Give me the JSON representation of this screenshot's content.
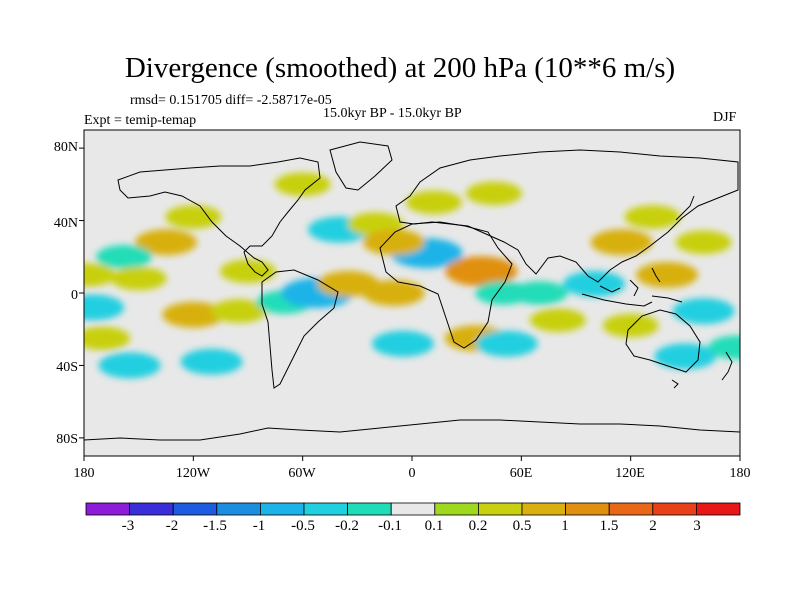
{
  "chart_data": {
    "type": "heatmap",
    "title": "Divergence (smoothed) at 200 hPa (10**6 m/s)",
    "stats_label": "rmsd= 0.151705 diff= -2.58717e-05",
    "expt_label": "Expt = temip-temap",
    "period_label": "15.0kyr BP - 15.0kyr BP",
    "season_label": "DJF",
    "lat_ticks": [
      "80N",
      "40N",
      "0",
      "40S",
      "80S"
    ],
    "lon_ticks": [
      "180",
      "120W",
      "60W",
      "0",
      "60E",
      "120E",
      "180"
    ],
    "xlim": [
      -180,
      180
    ],
    "ylim": [
      -90,
      90
    ],
    "colorbar": {
      "colors": [
        "#8c1cd8",
        "#3a2ed8",
        "#1e5be0",
        "#1c8ee0",
        "#1cb4e8",
        "#20cfe0",
        "#20ddb8",
        "#e8e8e8",
        "#a0d820",
        "#c8d010",
        "#d8b010",
        "#e09010",
        "#e86818",
        "#e84018",
        "#e81818"
      ],
      "labels": [
        "-3",
        "-2",
        "-1.5",
        "-1",
        "-0.5",
        "-0.2",
        "-0.1",
        "0.1",
        "0.2",
        "0.5",
        "1",
        "1.5",
        "2",
        "3"
      ]
    },
    "anomalies": [
      {
        "lon": -60,
        "lat": 60,
        "value": 0.2
      },
      {
        "lon": -120,
        "lat": 42,
        "value": 0.2
      },
      {
        "lon": -135,
        "lat": 28,
        "value": 0.5
      },
      {
        "lon": -158,
        "lat": 20,
        "value": -0.2
      },
      {
        "lon": -150,
        "lat": 8,
        "value": 0.2
      },
      {
        "lon": -178,
        "lat": 10,
        "value": 0.2
      },
      {
        "lon": -175,
        "lat": -8,
        "value": -0.5
      },
      {
        "lon": -120,
        "lat": -12,
        "value": 0.5
      },
      {
        "lon": -155,
        "lat": -40,
        "value": -0.5
      },
      {
        "lon": -110,
        "lat": -38,
        "value": -0.5
      },
      {
        "lon": -170,
        "lat": -25,
        "value": 0.2
      },
      {
        "lon": -90,
        "lat": 12,
        "value": 0.2
      },
      {
        "lon": -95,
        "lat": -10,
        "value": 0.2
      },
      {
        "lon": -70,
        "lat": -5,
        "value": -0.2
      },
      {
        "lon": -52,
        "lat": 0,
        "value": -1
      },
      {
        "lon": -35,
        "lat": 5,
        "value": 0.5
      },
      {
        "lon": -40,
        "lat": 35,
        "value": -0.5
      },
      {
        "lon": -20,
        "lat": 38,
        "value": 0.2
      },
      {
        "lon": 8,
        "lat": 22,
        "value": -1
      },
      {
        "lon": 45,
        "lat": 55,
        "value": 0.2
      },
      {
        "lon": 12,
        "lat": 50,
        "value": 0.2
      },
      {
        "lon": -10,
        "lat": 28,
        "value": 0.5
      },
      {
        "lon": -10,
        "lat": 0,
        "value": 0.5
      },
      {
        "lon": -5,
        "lat": -28,
        "value": -0.5
      },
      {
        "lon": 38,
        "lat": 12,
        "value": 1
      },
      {
        "lon": 50,
        "lat": 0,
        "value": -0.2
      },
      {
        "lon": 35,
        "lat": -25,
        "value": 0.5
      },
      {
        "lon": 52,
        "lat": -28,
        "value": -0.5
      },
      {
        "lon": 70,
        "lat": 0,
        "value": -0.2
      },
      {
        "lon": 80,
        "lat": -15,
        "value": 0.2
      },
      {
        "lon": 100,
        "lat": 5,
        "value": -0.5
      },
      {
        "lon": 120,
        "lat": -18,
        "value": 0.2
      },
      {
        "lon": 140,
        "lat": 10,
        "value": 0.5
      },
      {
        "lon": 132,
        "lat": 42,
        "value": 0.2
      },
      {
        "lon": 115,
        "lat": 28,
        "value": 0.5
      },
      {
        "lon": 160,
        "lat": 28,
        "value": 0.2
      },
      {
        "lon": 160,
        "lat": -10,
        "value": -0.5
      },
      {
        "lon": 150,
        "lat": -35,
        "value": -0.5
      },
      {
        "lon": 178,
        "lat": -30,
        "value": -0.2
      }
    ]
  }
}
